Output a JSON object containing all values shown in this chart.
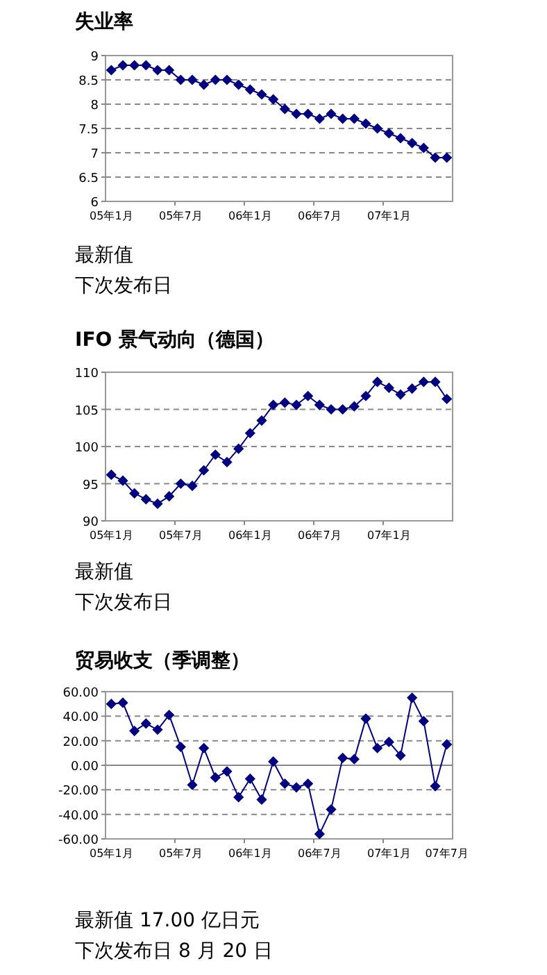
{
  "chart_data": [
    {
      "type": "line",
      "title": "失业率",
      "marker": "diamond",
      "line_style": "solid",
      "grid": "y",
      "categories": [
        "05年1月",
        null,
        null,
        null,
        null,
        null,
        "05年7月",
        null,
        null,
        null,
        null,
        null,
        "06年1月",
        null,
        null,
        null,
        null,
        null,
        "06年7月",
        null,
        null,
        null,
        null,
        null,
        "07年1月",
        null,
        null,
        null,
        null,
        null
      ],
      "series": [
        {
          "color": "#000080",
          "values": [
            8.7,
            8.8,
            8.8,
            8.8,
            8.7,
            8.7,
            8.5,
            8.5,
            8.4,
            8.5,
            8.5,
            8.4,
            8.3,
            8.2,
            8.1,
            7.9,
            7.8,
            7.8,
            7.7,
            7.8,
            7.7,
            7.7,
            7.6,
            7.5,
            7.4,
            7.3,
            7.2,
            7.1,
            6.9,
            6.9
          ]
        }
      ],
      "ylim": [
        6,
        9
      ],
      "yticks": [
        6,
        6.5,
        7,
        7.5,
        8,
        8.5,
        9
      ],
      "annotations": [
        "最新值",
        "下次发布日"
      ]
    },
    {
      "type": "line",
      "title": "IFO 景气动向（德国）",
      "marker": "diamond",
      "line_style": "solid",
      "grid": "y",
      "categories": [
        "05年1月",
        null,
        null,
        null,
        null,
        null,
        "05年7月",
        null,
        null,
        null,
        null,
        null,
        "06年1月",
        null,
        null,
        null,
        null,
        null,
        "06年7月",
        null,
        null,
        null,
        null,
        null,
        "07年1月",
        null,
        null,
        null,
        null,
        null
      ],
      "series": [
        {
          "color": "#000080",
          "values": [
            96.2,
            95.4,
            93.7,
            92.9,
            92.3,
            93.3,
            95.0,
            94.7,
            96.8,
            98.9,
            97.9,
            99.7,
            101.8,
            103.5,
            105.6,
            105.9,
            105.6,
            106.8,
            105.6,
            105.0,
            105.0,
            105.4,
            106.8,
            108.7,
            107.9,
            107.0,
            107.8,
            108.7,
            108.7,
            106.4
          ]
        }
      ],
      "ylim": [
        90,
        110
      ],
      "yticks": [
        90,
        95,
        100,
        105,
        110
      ],
      "annotations": [
        "最新值",
        "下次发布日"
      ]
    },
    {
      "type": "line",
      "title": "贸易收支（季调整）",
      "marker": "diamond",
      "line_style": "solid",
      "grid": "y",
      "categories": [
        "05年1月",
        null,
        null,
        null,
        null,
        null,
        "05年7月",
        null,
        null,
        null,
        null,
        null,
        "06年1月",
        null,
        null,
        null,
        null,
        null,
        "06年7月",
        null,
        null,
        null,
        null,
        null,
        "07年1月",
        null,
        null,
        null,
        null,
        "07年7月"
      ],
      "series": [
        {
          "color": "#000080",
          "values": [
            50,
            51,
            28,
            34,
            29,
            41,
            15,
            -16,
            14,
            -10,
            -5,
            -26,
            -11,
            -28,
            3,
            -15,
            -18,
            -15,
            -56,
            -36,
            6,
            5,
            38,
            14,
            19,
            8,
            55,
            36,
            -17,
            17
          ]
        }
      ],
      "ylim": [
        -60,
        60
      ],
      "yticks": [
        {
          "value": -60,
          "label": "-60.00"
        },
        {
          "value": -40,
          "label": "-40.00"
        },
        {
          "value": -20,
          "label": "-20.00"
        },
        {
          "value": 0,
          "label": "0.00"
        },
        {
          "value": 20,
          "label": "20.00"
        },
        {
          "value": 40,
          "label": "40.00"
        },
        {
          "value": 60,
          "label": "60.00"
        }
      ],
      "annotations": [
        "最新值 17.00 亿日元",
        "下次发布日 8 月 20 日"
      ]
    }
  ]
}
